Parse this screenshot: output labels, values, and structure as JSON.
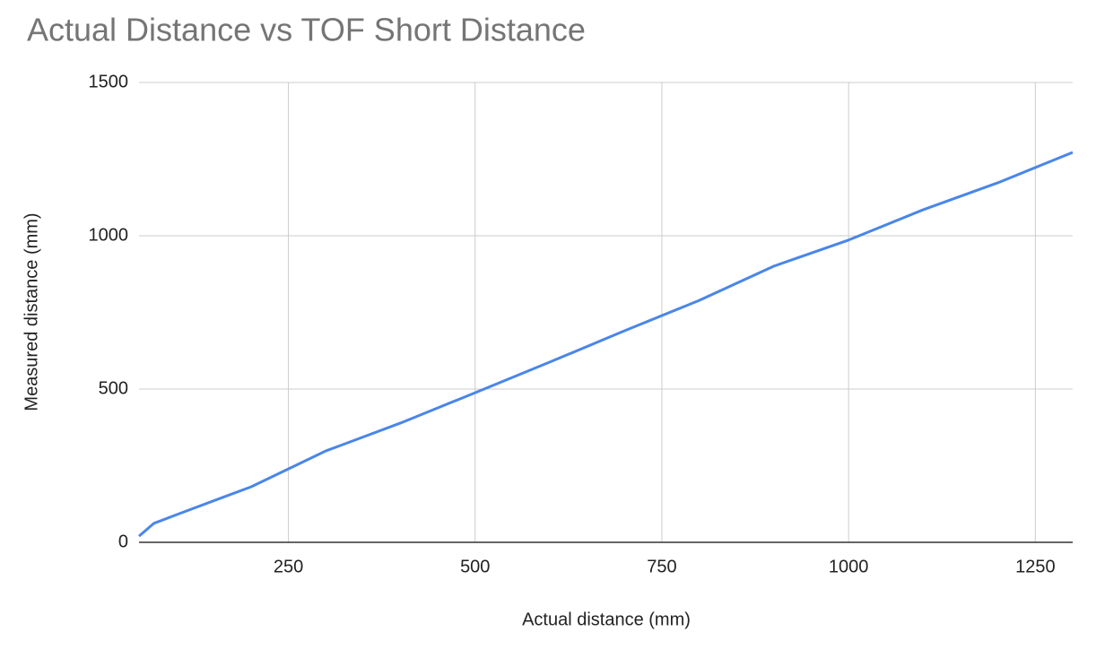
{
  "chart_data": {
    "type": "line",
    "title": "Actual Distance vs TOF Short Distance",
    "x_label": "Actual distance (mm)",
    "y_label": "Measured distance (mm)",
    "x": [
      50,
      70,
      100,
      200,
      300,
      400,
      500,
      600,
      700,
      800,
      900,
      1000,
      1100,
      1200,
      1300
    ],
    "series": [
      {
        "name": "TOF Short Distance",
        "color": "#4a86e8",
        "values": [
          20,
          62,
          90,
          181,
          298,
          389,
          488,
          588,
          690,
          789,
          901,
          986,
          1085,
          1173,
          1272
        ]
      }
    ],
    "xlim": [
      50,
      1300
    ],
    "xticks": [
      250,
      500,
      750,
      1000,
      1250
    ],
    "ylim": [
      0,
      1500
    ],
    "yticks": [
      0,
      500,
      1000,
      1500
    ],
    "grid": true
  }
}
